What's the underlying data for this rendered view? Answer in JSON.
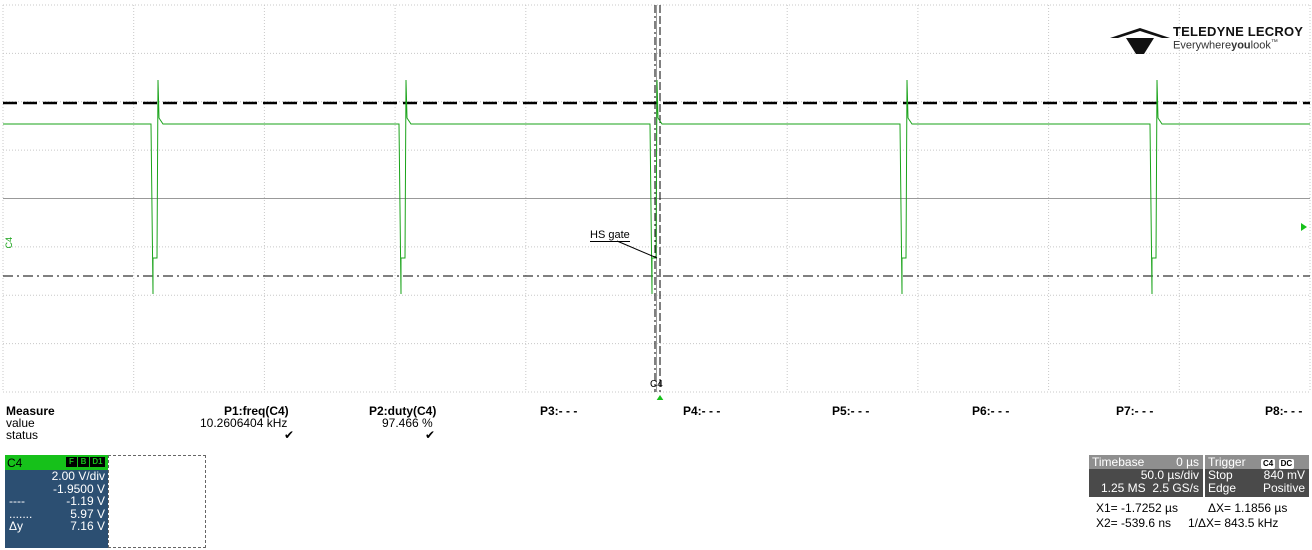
{
  "brand": {
    "name": "TELEDYNE LECROY",
    "tagline_pre": "Everywhere",
    "tagline_bold": "you",
    "tagline_post": "look",
    "tm": "™"
  },
  "trace": {
    "label": "HS gate",
    "channel_marker": "C4",
    "bottom_marker": "C4",
    "color": "#1aa31a"
  },
  "measure": {
    "title": "Measure",
    "rows": [
      "value",
      "status"
    ],
    "params": [
      {
        "name": "P1:freq(C4)",
        "value": "10.2606404 kHz",
        "status": "✔"
      },
      {
        "name": "P2:duty(C4)",
        "value": "97.466 %",
        "status": "✔"
      },
      {
        "name": "P3:- - -"
      },
      {
        "name": "P4:- - -"
      },
      {
        "name": "P5:- - -"
      },
      {
        "name": "P6:- - -"
      },
      {
        "name": "P7:- - -"
      },
      {
        "name": "P8:- - -"
      }
    ]
  },
  "channel": {
    "name": "C4",
    "badges": [
      "F",
      "B",
      "D1"
    ],
    "vdiv": "2.00 V/div",
    "offset": "-1.9500 V",
    "cursor1_key": "----",
    "cursor1": "-1.19 V",
    "cursor2_key": ".......",
    "cursor2": "5.97 V",
    "delta_key": "Δy",
    "delta": "7.16 V"
  },
  "timebase": {
    "label": "Timebase",
    "delay": "0 µs",
    "tdiv": "50.0 µs/div",
    "samples": "1.25 MS",
    "rate": "2.5 GS/s"
  },
  "trigger": {
    "label": "Trigger",
    "src": "C4",
    "coupling": "DC",
    "mode": "Stop",
    "level": "840 mV",
    "type": "Edge",
    "slope": "Positive"
  },
  "cursors": {
    "x1": "X1=  -1.7252 µs",
    "dx": "ΔX=  1.1856 µs",
    "x2": "X2=   -539.6 ns",
    "inv": "1/ΔX=  843.5 kHz"
  }
}
